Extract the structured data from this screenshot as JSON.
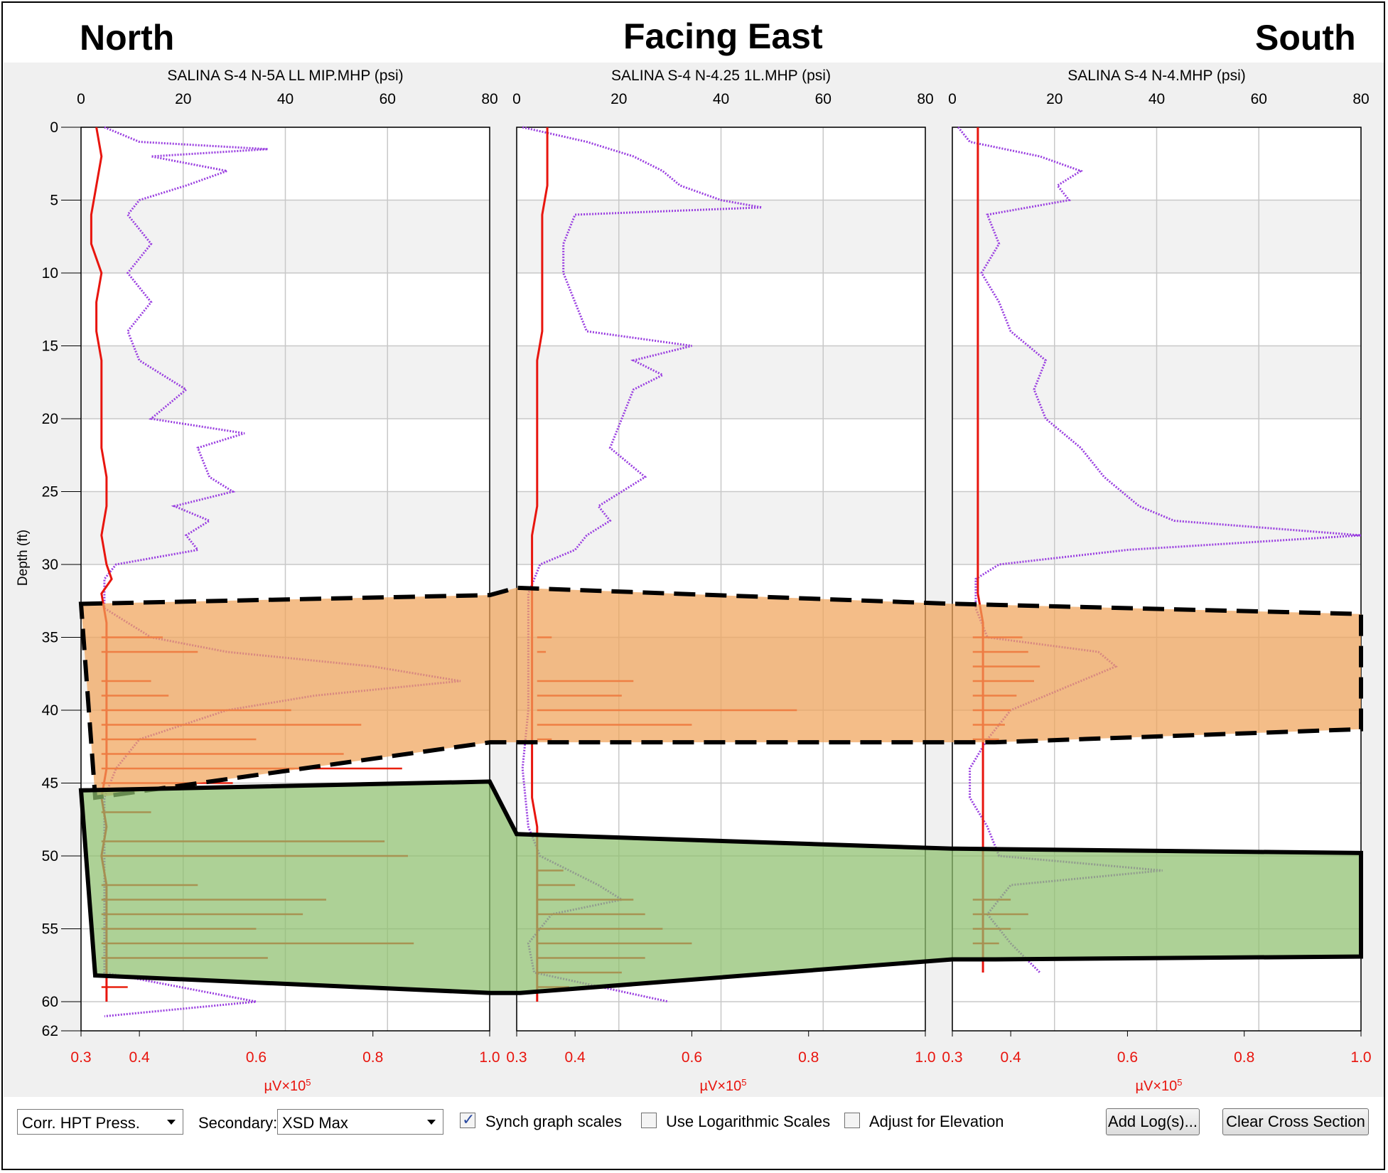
{
  "headers": {
    "left": "North",
    "center": "Facing East",
    "right": "South"
  },
  "y_axis_label": "Depth (ft)",
  "bottom_axis_unit_html": "µV×10<tspan baseline-shift=\"super\" font-size=\"13\">5</tspan>",
  "bottom_axis_unit_text": "µV×10⁵",
  "controls": {
    "primary_select": "Corr. HPT Press.",
    "secondary_label": "Secondary:",
    "secondary_select": "XSD Max",
    "synch_label": "Synch graph scales",
    "synch_checked": true,
    "log_label": "Use Logarithmic Scales",
    "log_checked": false,
    "elev_label": "Adjust for Elevation",
    "elev_checked": false,
    "add_log_button": "Add Log(s)...",
    "clear_button": "Clear Cross Section"
  },
  "colors": {
    "pressure": "#e8150e",
    "xsd": "#9a3fe0",
    "orange_zone": "#f0a35a",
    "green_zone": "#8dbf6d",
    "grid": "#c8c8c8",
    "alt_band": "#f2f2f2"
  },
  "chart_data": {
    "type": "line",
    "top_axis": {
      "ticks": [
        0,
        20,
        40,
        60,
        80
      ],
      "range": [
        0,
        80
      ],
      "unit": "psi"
    },
    "bottom_axis": {
      "ticks": [
        "0.3",
        "0.4",
        "0.6",
        "0.8",
        "1.0"
      ],
      "range": [
        0.3,
        1.0
      ]
    },
    "depth_axis": {
      "ticks": [
        0,
        5,
        10,
        15,
        20,
        25,
        30,
        35,
        40,
        45,
        50,
        55,
        60,
        62
      ],
      "range": [
        0,
        62
      ],
      "label": "Depth (ft)"
    },
    "logs": [
      {
        "title": "SALINA S-4 N-5A  LL MIP.MHP (psi)",
        "pressure_psi": [
          [
            0,
            3
          ],
          [
            2,
            4
          ],
          [
            4,
            3
          ],
          [
            6,
            2
          ],
          [
            8,
            2
          ],
          [
            10,
            4
          ],
          [
            12,
            3
          ],
          [
            14,
            3
          ],
          [
            16,
            4
          ],
          [
            18,
            4
          ],
          [
            20,
            4
          ],
          [
            22,
            4
          ],
          [
            24,
            5
          ],
          [
            26,
            5
          ],
          [
            28,
            4
          ],
          [
            30,
            5
          ],
          [
            31,
            6
          ],
          [
            32,
            4
          ],
          [
            34,
            5
          ],
          [
            36,
            5
          ],
          [
            38,
            5
          ],
          [
            40,
            5
          ],
          [
            42,
            5
          ],
          [
            44,
            5
          ],
          [
            46,
            4
          ],
          [
            48,
            5
          ],
          [
            50,
            4
          ],
          [
            52,
            5
          ],
          [
            54,
            5
          ],
          [
            56,
            5
          ],
          [
            58,
            5
          ],
          [
            60,
            5
          ]
        ],
        "xsd_uv": [
          [
            0,
            0.34
          ],
          [
            1,
            0.4
          ],
          [
            1.5,
            0.62
          ],
          [
            2,
            0.42
          ],
          [
            3,
            0.55
          ],
          [
            4,
            0.48
          ],
          [
            5,
            0.4
          ],
          [
            6,
            0.38
          ],
          [
            8,
            0.42
          ],
          [
            10,
            0.38
          ],
          [
            12,
            0.42
          ],
          [
            14,
            0.38
          ],
          [
            16,
            0.4
          ],
          [
            18,
            0.48
          ],
          [
            20,
            0.42
          ],
          [
            21,
            0.58
          ],
          [
            22,
            0.5
          ],
          [
            24,
            0.52
          ],
          [
            25,
            0.56
          ],
          [
            26,
            0.46
          ],
          [
            27,
            0.52
          ],
          [
            28,
            0.48
          ],
          [
            29,
            0.5
          ],
          [
            30,
            0.36
          ],
          [
            31,
            0.34
          ],
          [
            33,
            0.34
          ],
          [
            35,
            0.42
          ],
          [
            36,
            0.55
          ],
          [
            37,
            0.8
          ],
          [
            38,
            0.95
          ],
          [
            39,
            0.7
          ],
          [
            40,
            0.55
          ],
          [
            42,
            0.4
          ],
          [
            44,
            0.36
          ],
          [
            46,
            0.34
          ],
          [
            48,
            0.34
          ],
          [
            50,
            0.34
          ],
          [
            52,
            0.34
          ],
          [
            54,
            0.34
          ],
          [
            56,
            0.34
          ],
          [
            58,
            0.34
          ],
          [
            60,
            0.6
          ],
          [
            61,
            0.34
          ]
        ],
        "xsd_spikes": [
          [
            35,
            0.44
          ],
          [
            36,
            0.5
          ],
          [
            38,
            0.42
          ],
          [
            39,
            0.45
          ],
          [
            40,
            0.66
          ],
          [
            41,
            0.78
          ],
          [
            42,
            0.6
          ],
          [
            43,
            0.75
          ],
          [
            44,
            0.85
          ],
          [
            45,
            0.56
          ],
          [
            47,
            0.42
          ],
          [
            49,
            0.82
          ],
          [
            50,
            0.86
          ],
          [
            52,
            0.5
          ],
          [
            53,
            0.72
          ],
          [
            54,
            0.68
          ],
          [
            55,
            0.6
          ],
          [
            56,
            0.87
          ],
          [
            57,
            0.62
          ],
          [
            59,
            0.38
          ]
        ]
      },
      {
        "title": "SALINA S-4 N-4.25 1L.MHP (psi)",
        "pressure_psi": [
          [
            0,
            6
          ],
          [
            2,
            6
          ],
          [
            4,
            6
          ],
          [
            6,
            5
          ],
          [
            8,
            5
          ],
          [
            10,
            5
          ],
          [
            12,
            5
          ],
          [
            14,
            5
          ],
          [
            16,
            4
          ],
          [
            18,
            4
          ],
          [
            20,
            4
          ],
          [
            22,
            4
          ],
          [
            24,
            4
          ],
          [
            26,
            4
          ],
          [
            28,
            3
          ],
          [
            30,
            3
          ],
          [
            32,
            3
          ],
          [
            34,
            3
          ],
          [
            36,
            3
          ],
          [
            38,
            3
          ],
          [
            40,
            3
          ],
          [
            42,
            3
          ],
          [
            44,
            3
          ],
          [
            46,
            3
          ],
          [
            48,
            4
          ],
          [
            50,
            4
          ],
          [
            52,
            4
          ],
          [
            54,
            4
          ],
          [
            56,
            4
          ],
          [
            58,
            4
          ],
          [
            60,
            4
          ]
        ],
        "xsd_uv": [
          [
            0,
            0.31
          ],
          [
            1,
            0.42
          ],
          [
            2,
            0.5
          ],
          [
            3,
            0.55
          ],
          [
            4,
            0.58
          ],
          [
            5,
            0.65
          ],
          [
            5.5,
            0.72
          ],
          [
            6,
            0.4
          ],
          [
            8,
            0.38
          ],
          [
            10,
            0.38
          ],
          [
            12,
            0.4
          ],
          [
            14,
            0.42
          ],
          [
            15,
            0.6
          ],
          [
            16,
            0.5
          ],
          [
            17,
            0.55
          ],
          [
            18,
            0.5
          ],
          [
            20,
            0.48
          ],
          [
            22,
            0.46
          ],
          [
            24,
            0.52
          ],
          [
            25,
            0.48
          ],
          [
            26,
            0.44
          ],
          [
            27,
            0.46
          ],
          [
            28,
            0.42
          ],
          [
            29,
            0.4
          ],
          [
            30,
            0.34
          ],
          [
            32,
            0.32
          ],
          [
            36,
            0.32
          ],
          [
            40,
            0.32
          ],
          [
            44,
            0.31
          ],
          [
            48,
            0.32
          ],
          [
            50,
            0.34
          ],
          [
            52,
            0.44
          ],
          [
            53,
            0.48
          ],
          [
            54,
            0.36
          ],
          [
            56,
            0.32
          ],
          [
            58,
            0.33
          ],
          [
            60,
            0.56
          ]
        ],
        "xsd_spikes": [
          [
            35,
            0.36
          ],
          [
            36,
            0.35
          ],
          [
            38,
            0.5
          ],
          [
            39,
            0.48
          ],
          [
            40,
            0.78
          ],
          [
            41,
            0.6
          ],
          [
            42,
            0.36
          ],
          [
            51,
            0.38
          ],
          [
            52,
            0.4
          ],
          [
            53,
            0.5
          ],
          [
            54,
            0.52
          ],
          [
            55,
            0.55
          ],
          [
            56,
            0.6
          ],
          [
            57,
            0.52
          ],
          [
            58,
            0.48
          ],
          [
            59,
            0.39
          ]
        ]
      },
      {
        "title": "SALINA S-4 N-4.MHP (psi)",
        "pressure_psi": [
          [
            0,
            5
          ],
          [
            2,
            5
          ],
          [
            4,
            5
          ],
          [
            6,
            5
          ],
          [
            8,
            5
          ],
          [
            10,
            5
          ],
          [
            12,
            5
          ],
          [
            14,
            5
          ],
          [
            16,
            5
          ],
          [
            18,
            5
          ],
          [
            20,
            5
          ],
          [
            22,
            5
          ],
          [
            24,
            5
          ],
          [
            26,
            5
          ],
          [
            28,
            5
          ],
          [
            30,
            5
          ],
          [
            32,
            5
          ],
          [
            34,
            6
          ],
          [
            36,
            6
          ],
          [
            38,
            6
          ],
          [
            40,
            6
          ],
          [
            42,
            6
          ],
          [
            44,
            6
          ],
          [
            46,
            6
          ],
          [
            48,
            6
          ],
          [
            50,
            6
          ],
          [
            52,
            6
          ],
          [
            54,
            6
          ],
          [
            56,
            6
          ],
          [
            58,
            6
          ]
        ],
        "xsd_uv": [
          [
            0,
            0.31
          ],
          [
            1,
            0.33
          ],
          [
            2,
            0.45
          ],
          [
            3,
            0.52
          ],
          [
            4,
            0.48
          ],
          [
            5,
            0.5
          ],
          [
            6,
            0.36
          ],
          [
            8,
            0.38
          ],
          [
            10,
            0.35
          ],
          [
            12,
            0.38
          ],
          [
            14,
            0.4
          ],
          [
            16,
            0.46
          ],
          [
            18,
            0.44
          ],
          [
            20,
            0.46
          ],
          [
            22,
            0.52
          ],
          [
            24,
            0.56
          ],
          [
            26,
            0.62
          ],
          [
            27,
            0.68
          ],
          [
            28,
            1.0
          ],
          [
            29,
            0.6
          ],
          [
            30,
            0.38
          ],
          [
            31,
            0.34
          ],
          [
            33,
            0.34
          ],
          [
            35,
            0.36
          ],
          [
            36,
            0.55
          ],
          [
            37,
            0.58
          ],
          [
            38,
            0.52
          ],
          [
            39,
            0.46
          ],
          [
            40,
            0.4
          ],
          [
            42,
            0.36
          ],
          [
            44,
            0.33
          ],
          [
            46,
            0.33
          ],
          [
            48,
            0.36
          ],
          [
            50,
            0.38
          ],
          [
            51,
            0.66
          ],
          [
            52,
            0.4
          ],
          [
            54,
            0.36
          ],
          [
            56,
            0.4
          ],
          [
            58,
            0.45
          ]
        ],
        "xsd_spikes": [
          [
            35,
            0.42
          ],
          [
            36,
            0.43
          ],
          [
            37,
            0.45
          ],
          [
            38,
            0.44
          ],
          [
            39,
            0.41
          ],
          [
            40,
            0.4
          ],
          [
            41,
            0.39
          ],
          [
            42,
            0.38
          ],
          [
            53,
            0.4
          ],
          [
            54,
            0.43
          ],
          [
            55,
            0.4
          ],
          [
            56,
            0.38
          ]
        ]
      }
    ],
    "zones": [
      {
        "name": "",
        "color": "orange",
        "style": "dashed",
        "top_ft": [
          32.7,
          31.6,
          32.7,
          33.4
        ],
        "bottom_ft": [
          46.0,
          42.2,
          42.2,
          41.3
        ]
      },
      {
        "name": "",
        "color": "green",
        "style": "solid",
        "top_ft": [
          45.5,
          48.5,
          49.5,
          49.8
        ],
        "bottom_ft": [
          58.2,
          59.4,
          57.1,
          56.9
        ]
      }
    ]
  }
}
